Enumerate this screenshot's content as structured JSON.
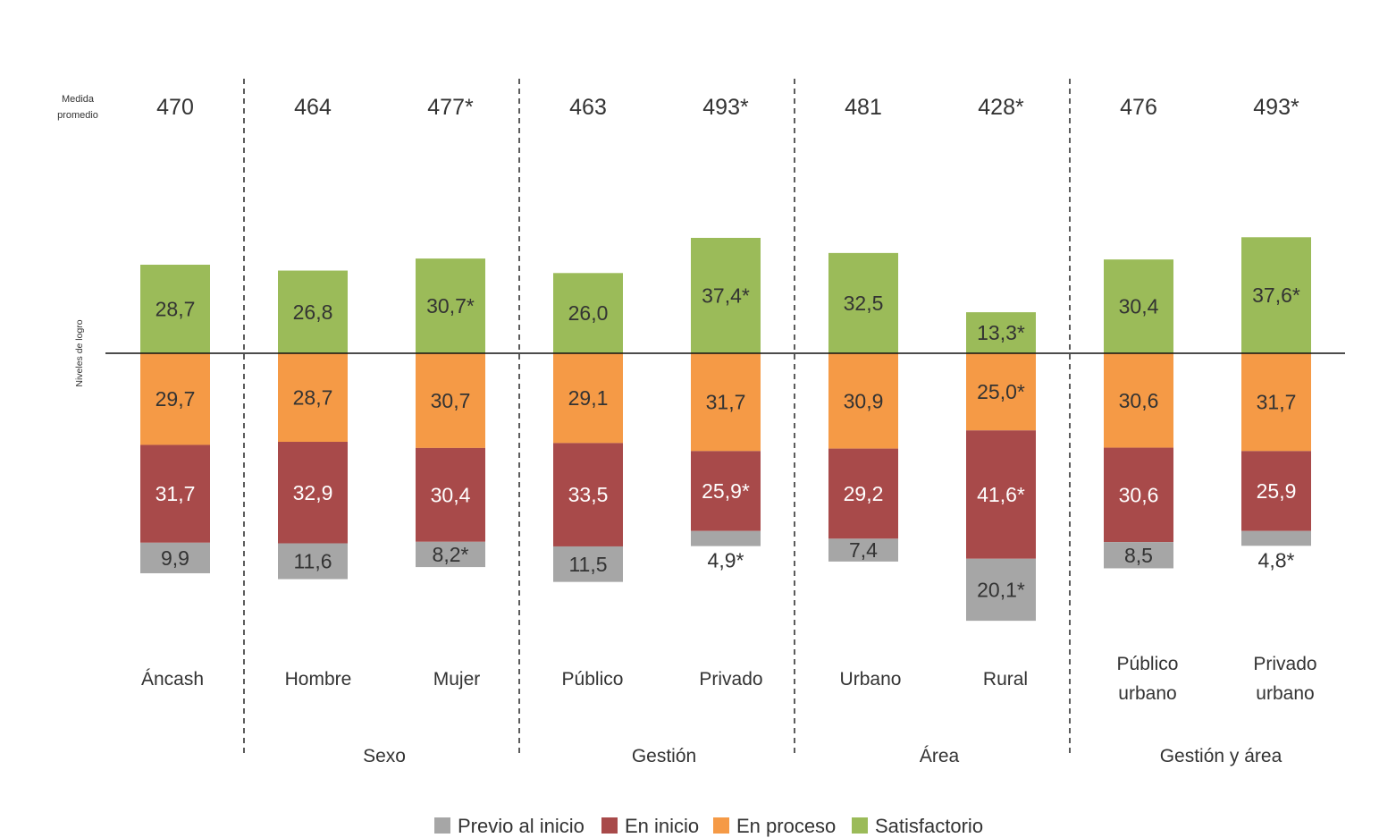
{
  "chart_data": {
    "type": "bar",
    "stacking": "diverging",
    "mean_label_lines": [
      "Medida",
      "promedio"
    ],
    "yaxis_label": "Niveles de logro",
    "categories": [
      {
        "label_lines": [
          "Áncash"
        ],
        "mean": "470"
      },
      {
        "label_lines": [
          "Hombre"
        ],
        "mean": "464"
      },
      {
        "label_lines": [
          "Mujer"
        ],
        "mean": "477*"
      },
      {
        "label_lines": [
          "Público"
        ],
        "mean": "463"
      },
      {
        "label_lines": [
          "Privado"
        ],
        "mean": "493*"
      },
      {
        "label_lines": [
          "Urbano"
        ],
        "mean": "481"
      },
      {
        "label_lines": [
          "Rural"
        ],
        "mean": "428*"
      },
      {
        "label_lines": [
          "Público",
          "urbano"
        ],
        "mean": "476"
      },
      {
        "label_lines": [
          "Privado",
          "urbano"
        ],
        "mean": "493*"
      }
    ],
    "groups": [
      {
        "label": "Sexo",
        "categories": [
          1,
          2
        ]
      },
      {
        "label": "Gestión",
        "categories": [
          3,
          4
        ]
      },
      {
        "label": "Área",
        "categories": [
          5,
          6
        ]
      },
      {
        "label": "Gestión y área",
        "categories": [
          7,
          8
        ]
      }
    ],
    "series": [
      {
        "name": "Previo al inicio",
        "color": "#a6a6a6",
        "side": "below",
        "values": [
          9.9,
          11.6,
          8.2,
          11.5,
          4.9,
          7.4,
          20.1,
          8.5,
          4.8
        ],
        "labels": [
          "9,9",
          "11,6",
          "8,2*",
          "11,5",
          "4,9*",
          "7,4",
          "20,1*",
          "8,5",
          "4,8*"
        ],
        "label_color": "#333333"
      },
      {
        "name": "En inicio",
        "color": "#a84a4a",
        "side": "below",
        "values": [
          31.7,
          32.9,
          30.4,
          33.5,
          25.9,
          29.2,
          41.6,
          30.6,
          25.9
        ],
        "labels": [
          "31,7",
          "32,9",
          "30,4",
          "33,5",
          "25,9*",
          "29,2",
          "41,6*",
          "30,6",
          "25,9"
        ],
        "label_color": "#ffffff"
      },
      {
        "name": "En proceso",
        "color": "#f59a46",
        "side": "below",
        "values": [
          29.7,
          28.7,
          30.7,
          29.1,
          31.7,
          30.9,
          25.0,
          30.6,
          31.7
        ],
        "labels": [
          "29,7",
          "28,7",
          "30,7",
          "29,1",
          "31,7",
          "30,9",
          "25,0*",
          "30,6",
          "31,7"
        ],
        "label_color": "#333333"
      },
      {
        "name": "Satisfactorio",
        "color": "#9bbb59",
        "side": "above",
        "values": [
          28.7,
          26.8,
          30.7,
          26.0,
          37.4,
          32.5,
          13.3,
          30.4,
          37.6
        ],
        "labels": [
          "28,7",
          "26,8",
          "30,7*",
          "26,0",
          "37,4*",
          "32,5",
          "13,3*",
          "30,4",
          "37,6*"
        ],
        "label_color": "#333333"
      }
    ],
    "legend_position": "bottom-center",
    "grid": false
  }
}
